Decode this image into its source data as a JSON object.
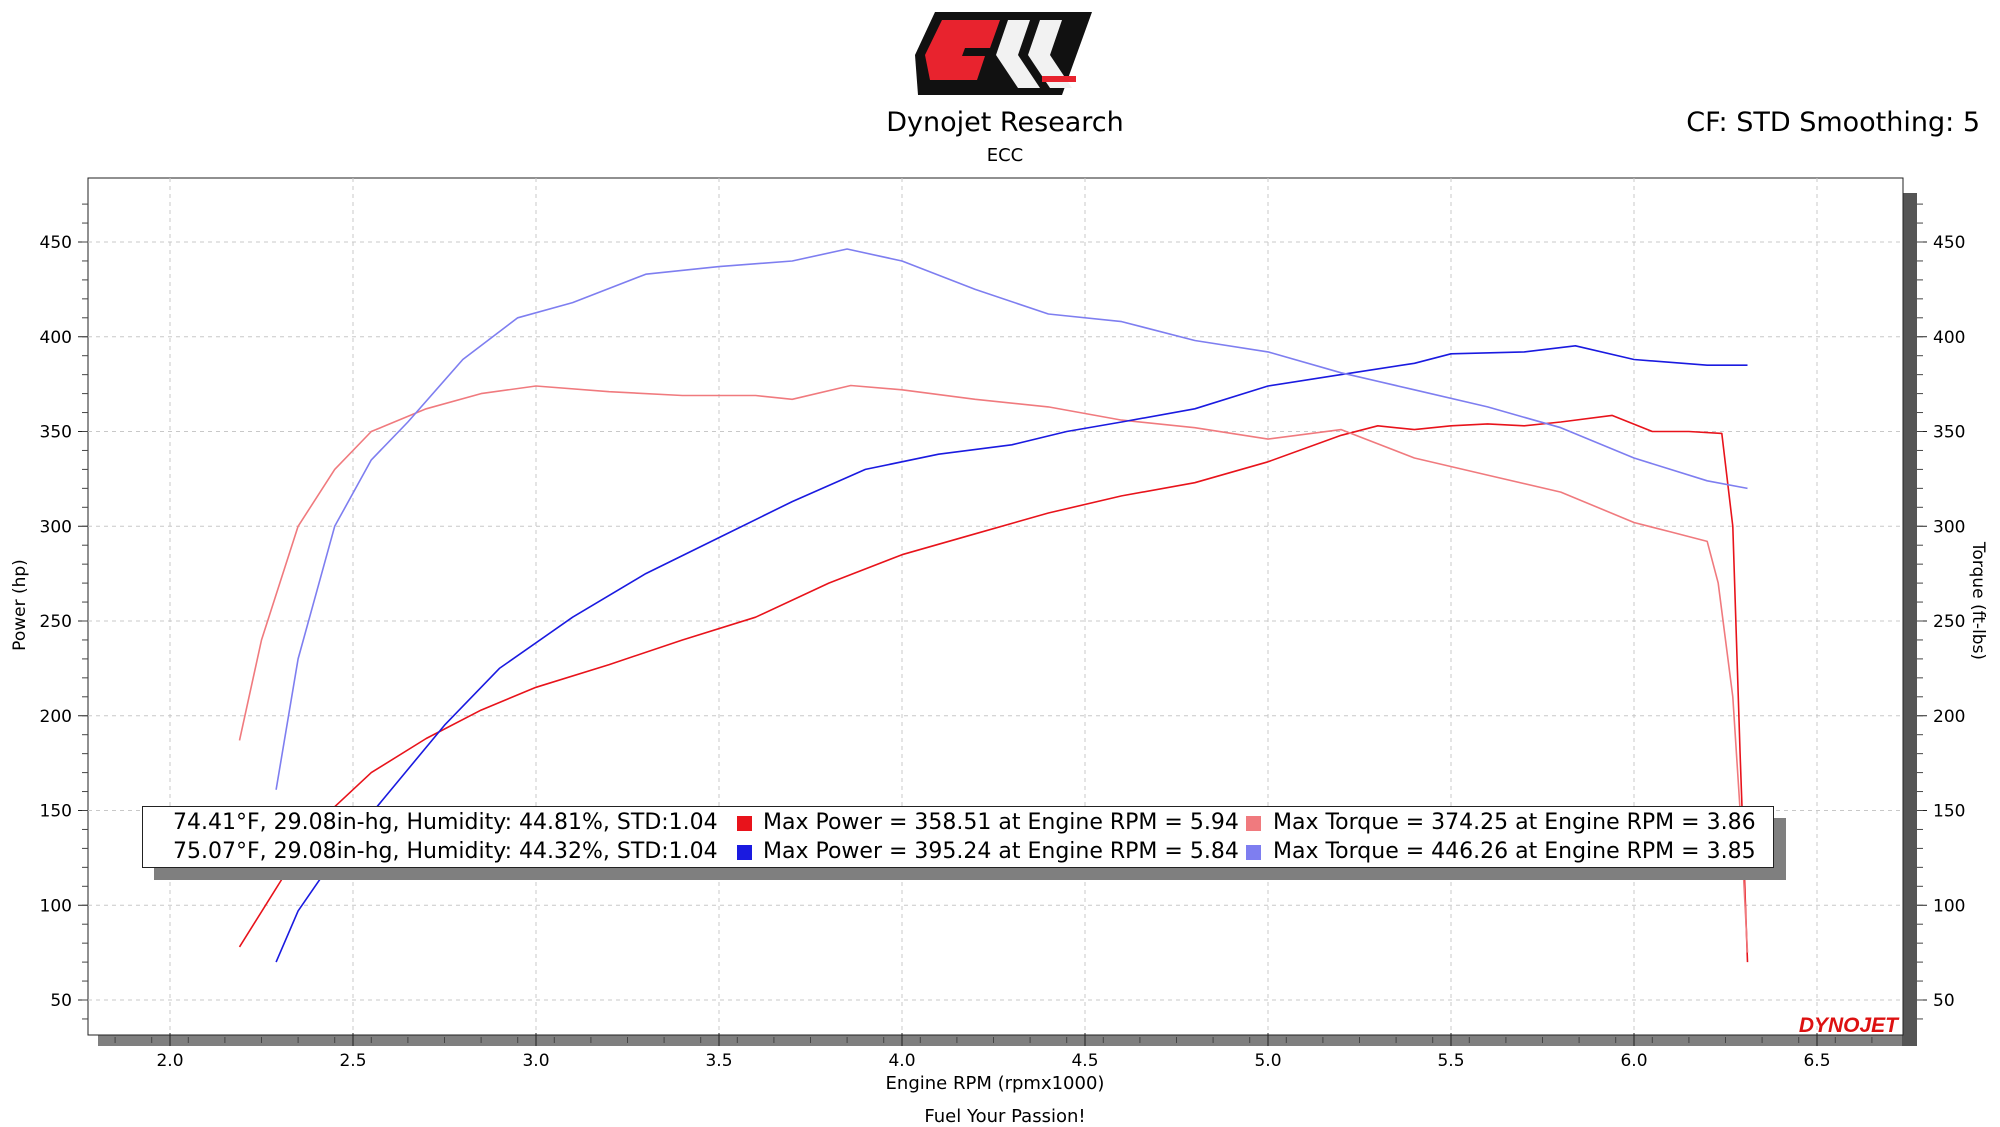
{
  "header": {
    "title": "Dynojet Research",
    "subtitle": "ECC",
    "settings": "CF: STD Smoothing: 5",
    "logo_text": "ECC"
  },
  "footer": {
    "text": "Fuel Your Passion!"
  },
  "watermark": "DYNOJET",
  "colors": {
    "power_run1": "#e8131b",
    "torque_run1": "#f07a7e",
    "power_run2": "#1a1ae0",
    "torque_run2": "#7e7ef0",
    "grid": "#c8c8c8",
    "background": "#ffffff"
  },
  "legend": {
    "rows": [
      {
        "conditions": "74.41°F, 29.08in-hg, Humidity: 44.81%, STD:1.04",
        "max_power": "Max Power = 358.51 at Engine RPM = 5.94",
        "max_torque": "Max Torque = 374.25 at Engine RPM = 3.86"
      },
      {
        "conditions": "75.07°F, 29.08in-hg, Humidity: 44.32%, STD:1.04",
        "max_power": "Max Power = 395.24 at Engine RPM = 5.84",
        "max_torque": "Max Torque = 446.26 at Engine RPM = 3.85"
      }
    ]
  },
  "chart_data": {
    "type": "line",
    "title": "Dynojet Research",
    "xlabel": "Engine RPM (rpmx1000)",
    "ylabel": "Power (hp)",
    "y2label": "Torque (ft-lbs)",
    "xlim": [
      1.8,
      6.75
    ],
    "ylim": [
      30,
      480
    ],
    "x_ticks": [
      "2.0",
      "2.5",
      "3.0",
      "3.5",
      "4.0",
      "4.5",
      "5.0",
      "5.5",
      "6.0",
      "6.5"
    ],
    "y_ticks": [
      "50",
      "100",
      "150",
      "200",
      "250",
      "300",
      "350",
      "400",
      "450"
    ],
    "grid": true,
    "series": [
      {
        "name": "Power",
        "axis": "left",
        "color": "#e8131b",
        "x": [
          2.19,
          2.3,
          2.4,
          2.55,
          2.7,
          2.85,
          3.0,
          3.2,
          3.4,
          3.6,
          3.8,
          4.0,
          4.2,
          4.4,
          4.6,
          4.8,
          5.0,
          5.2,
          5.3,
          5.4,
          5.5,
          5.6,
          5.7,
          5.8,
          5.94,
          6.05,
          6.15,
          6.24,
          6.27,
          6.29,
          6.31
        ],
        "y": [
          78,
          112,
          143,
          170,
          188,
          203,
          215,
          227,
          240,
          252,
          270,
          285,
          296,
          307,
          316,
          323,
          334,
          348,
          353,
          351,
          353,
          354,
          353,
          355,
          358.5,
          350,
          350,
          349,
          300,
          180,
          70
        ]
      },
      {
        "name": "Torque",
        "axis": "right",
        "color": "#f07a7e",
        "x": [
          2.19,
          2.25,
          2.35,
          2.45,
          2.55,
          2.7,
          2.85,
          3.0,
          3.2,
          3.4,
          3.6,
          3.7,
          3.86,
          4.0,
          4.2,
          4.4,
          4.6,
          4.8,
          5.0,
          5.2,
          5.4,
          5.6,
          5.8,
          6.0,
          6.1,
          6.2,
          6.23,
          6.27,
          6.29,
          6.31
        ],
        "y": [
          187,
          240,
          300,
          330,
          350,
          362,
          370,
          374,
          371,
          369,
          369,
          367,
          374.3,
          372,
          367,
          363,
          356,
          352,
          346,
          351,
          336,
          327,
          318,
          302,
          297,
          292,
          270,
          210,
          150,
          75
        ]
      },
      {
        "name": "Power",
        "axis": "left",
        "color": "#1a1ae0",
        "x": [
          2.29,
          2.35,
          2.45,
          2.6,
          2.75,
          2.9,
          3.1,
          3.3,
          3.5,
          3.7,
          3.9,
          4.1,
          4.3,
          4.45,
          4.6,
          4.8,
          5.0,
          5.2,
          5.4,
          5.5,
          5.7,
          5.84,
          6.0,
          6.2,
          6.31
        ],
        "y": [
          70,
          97,
          125,
          160,
          195,
          225,
          252,
          275,
          294,
          313,
          330,
          338,
          343,
          350,
          355,
          362,
          374,
          380,
          386,
          391,
          392,
          395.2,
          388,
          385,
          385
        ]
      },
      {
        "name": "Torque",
        "axis": "right",
        "color": "#7e7ef0",
        "x": [
          2.29,
          2.35,
          2.45,
          2.55,
          2.65,
          2.8,
          2.95,
          3.1,
          3.3,
          3.5,
          3.7,
          3.85,
          4.0,
          4.2,
          4.4,
          4.6,
          4.8,
          5.0,
          5.2,
          5.4,
          5.6,
          5.8,
          6.0,
          6.2,
          6.31
        ],
        "y": [
          161,
          230,
          300,
          335,
          355,
          388,
          410,
          418,
          433,
          437,
          440,
          446.3,
          440,
          425,
          412,
          408,
          398,
          392,
          381,
          372,
          363,
          352,
          336,
          324,
          320
        ]
      }
    ]
  }
}
